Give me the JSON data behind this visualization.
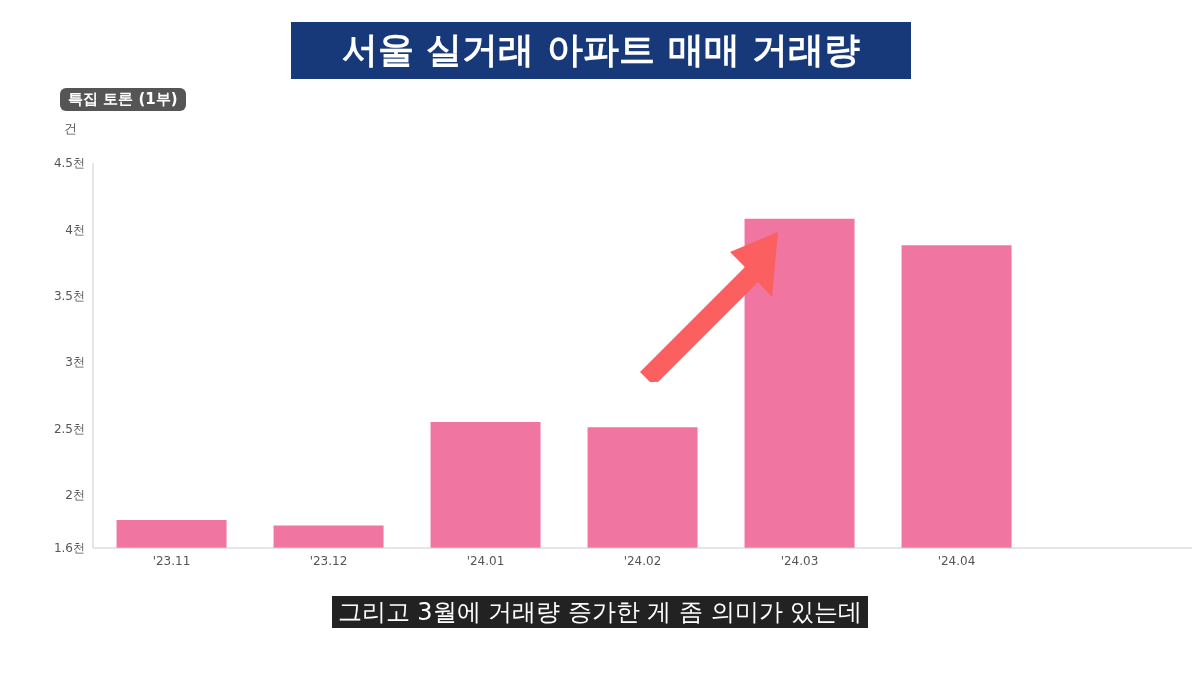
{
  "chart_data": {
    "type": "bar",
    "title": "서울 실거래 아파트 매매 거래량",
    "ylabel": "건",
    "categories": [
      "'23.11",
      "'23.12",
      "'24.01",
      "'24.02",
      "'24.03",
      "'24.04",
      null
    ],
    "values": [
      1.81,
      1.77,
      2.55,
      2.51,
      4.08,
      3.88,
      null
    ],
    "color": "#f075a0",
    "ylim": [
      1.6,
      4.5
    ],
    "yticks": [
      {
        "value": 1.6,
        "label": "1.6천"
      },
      {
        "value": 2,
        "label": "2천"
      },
      {
        "value": 2.5,
        "label": "2.5천"
      },
      {
        "value": 3,
        "label": "3천"
      },
      {
        "value": 3.5,
        "label": "3.5천"
      },
      {
        "value": 4,
        "label": "4천"
      },
      {
        "value": 4.5,
        "label": "4.5천"
      }
    ],
    "grid": false,
    "legend": false,
    "annotations": [
      "특집 토론 (1부)",
      "그리고 3월에 거래량 증가한 게 좀 의미가 있는데"
    ]
  }
}
